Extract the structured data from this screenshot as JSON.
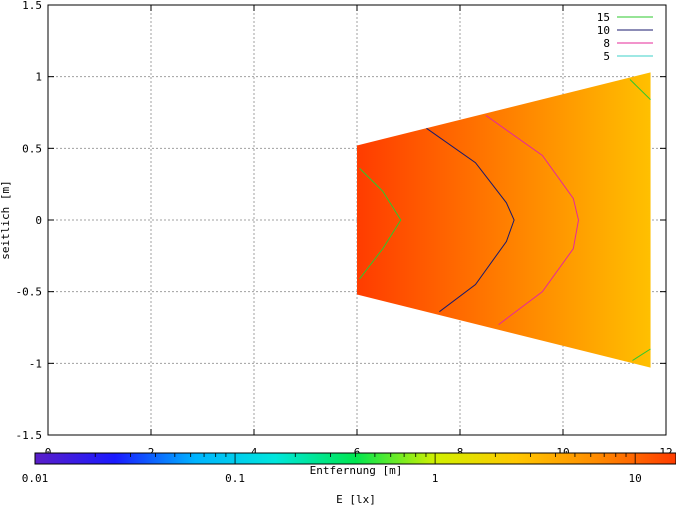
{
  "chart_data": {
    "type": "heatmap",
    "xlabel": "Entfernung [m]",
    "ylabel": "seitlich [m]",
    "xlim": [
      0,
      12
    ],
    "ylim": [
      -1.5,
      1.5
    ],
    "x_ticks": [
      "0",
      "2",
      "4",
      "6",
      "8",
      "10",
      "12"
    ],
    "y_ticks": [
      "1.5",
      "1",
      "0.5",
      "0",
      "-0.5",
      "-1",
      "-1.5"
    ],
    "grid": true,
    "colorbar": {
      "label": "E [lx]",
      "scale": "log",
      "range": [
        0.01,
        16
      ],
      "ticks": [
        "0.01",
        "0.1",
        "1",
        "10"
      ],
      "colors": [
        "#5a1ec8",
        "#1a1aff",
        "#00b4ff",
        "#00e6dc",
        "#00e650",
        "#d2f000",
        "#ffc800",
        "#ff8c00",
        "#ff3c00"
      ]
    },
    "field_region": {
      "left_x": 6.0,
      "right_x": 11.7,
      "left_y_range": [
        -0.52,
        0.52
      ],
      "right_y_range": [
        -1.03,
        1.03
      ],
      "left_color": "#ff3c00",
      "right_color": "#ffc000"
    },
    "legend": {
      "placement": "top-right",
      "entries": [
        {
          "label": "15",
          "color": "#2ec82e"
        },
        {
          "label": "10",
          "color": "#1a1a6e"
        },
        {
          "label": "8",
          "color": "#e6289a"
        },
        {
          "label": "5",
          "color": "#3cd2c8"
        }
      ]
    },
    "contours": [
      {
        "level": "15",
        "color": "#2ec82e",
        "points": [
          [
            6.05,
            0.36
          ],
          [
            6.5,
            0.2
          ],
          [
            6.85,
            0.0
          ],
          [
            6.5,
            -0.2
          ],
          [
            6.05,
            -0.41
          ]
        ]
      },
      {
        "level": "15",
        "color": "#2ec82e",
        "points": [
          [
            11.3,
            0.98
          ],
          [
            11.7,
            0.84
          ]
        ]
      },
      {
        "level": "15",
        "color": "#2ec82e",
        "points": [
          [
            11.35,
            -0.98
          ],
          [
            11.7,
            -0.9
          ]
        ]
      },
      {
        "level": "10",
        "color": "#1a1a6e",
        "points": [
          [
            7.35,
            0.64
          ],
          [
            8.3,
            0.4
          ],
          [
            8.9,
            0.12
          ],
          [
            9.05,
            0.0
          ],
          [
            8.9,
            -0.15
          ],
          [
            8.3,
            -0.45
          ],
          [
            7.6,
            -0.64
          ]
        ]
      },
      {
        "level": "8",
        "color": "#e6289a",
        "points": [
          [
            8.5,
            0.73
          ],
          [
            9.6,
            0.45
          ],
          [
            10.2,
            0.15
          ],
          [
            10.3,
            0.0
          ],
          [
            10.2,
            -0.2
          ],
          [
            9.6,
            -0.5
          ],
          [
            8.75,
            -0.73
          ]
        ]
      }
    ]
  }
}
